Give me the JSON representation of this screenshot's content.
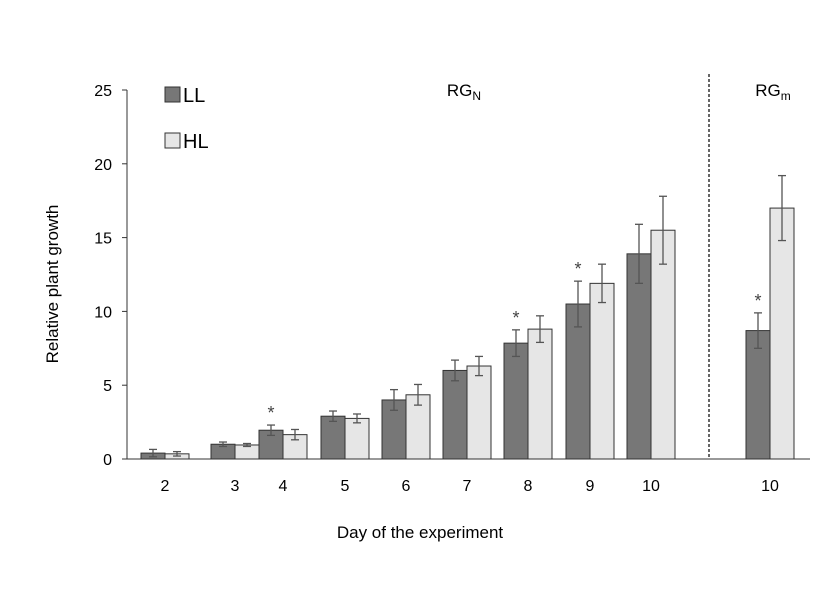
{
  "chart_data": {
    "type": "bar",
    "xlabel": "Day of the experiment",
    "ylabel": "Relative plant growth",
    "ylim": [
      0,
      25
    ],
    "yticks": [
      0,
      5,
      10,
      15,
      20,
      25
    ],
    "grid": false,
    "legend_position": "top-left",
    "colors": {
      "LL": "#777777",
      "HL": "#e6e6e6",
      "outline": "#333333",
      "error_bar": "#555555"
    },
    "regions": [
      {
        "label": "RG",
        "subscript": "N",
        "categories": [
          "2",
          "3",
          "4",
          "5",
          "6",
          "7",
          "8",
          "9",
          "10"
        ]
      },
      {
        "label": "RG",
        "subscript": "m",
        "categories": [
          "10"
        ]
      }
    ],
    "categories": [
      "2",
      "3",
      "4",
      "5",
      "6",
      "7",
      "8",
      "9",
      "10",
      "10"
    ],
    "series": [
      {
        "name": "LL",
        "values": [
          0.4,
          1.0,
          1.95,
          2.9,
          4.0,
          6.0,
          7.85,
          10.5,
          13.9,
          8.7
        ],
        "errors": [
          0.25,
          0.15,
          0.35,
          0.35,
          0.7,
          0.7,
          0.9,
          1.55,
          2.0,
          1.2
        ]
      },
      {
        "name": "HL",
        "values": [
          0.35,
          0.95,
          1.65,
          2.75,
          4.35,
          6.3,
          8.8,
          11.9,
          15.5,
          17.0
        ],
        "errors": [
          0.15,
          0.1,
          0.35,
          0.3,
          0.7,
          0.65,
          0.9,
          1.3,
          2.3,
          2.2
        ]
      }
    ],
    "significance": [
      {
        "category_index": 2,
        "label": "*"
      },
      {
        "category_index": 6,
        "label": "*"
      },
      {
        "category_index": 7,
        "label": "*"
      },
      {
        "category_index": 9,
        "label": "*"
      }
    ]
  }
}
